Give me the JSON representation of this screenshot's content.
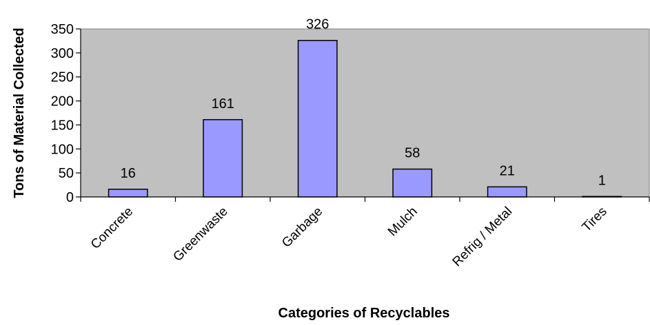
{
  "chart_data": {
    "type": "bar",
    "categories": [
      "Concrete",
      "Greenwaste",
      "Garbage",
      "Mulch",
      "Refrig / Metal",
      "Tires"
    ],
    "values": [
      16,
      161,
      326,
      58,
      21,
      1
    ],
    "data_labels": [
      "16",
      "161",
      "326",
      "58",
      "21",
      "1"
    ],
    "title": "",
    "xlabel": "Categories of Recyclables",
    "ylabel": "Tons of Material Collected",
    "ylim": [
      0,
      350
    ],
    "yticks": [
      0,
      50,
      100,
      150,
      200,
      250,
      300,
      350
    ],
    "grid": false,
    "legend": "none",
    "colors": {
      "plot_background": "#c0c0c0",
      "bar_fill": "#9999ff",
      "bar_stroke": "#000000",
      "axis": "#000000"
    }
  }
}
